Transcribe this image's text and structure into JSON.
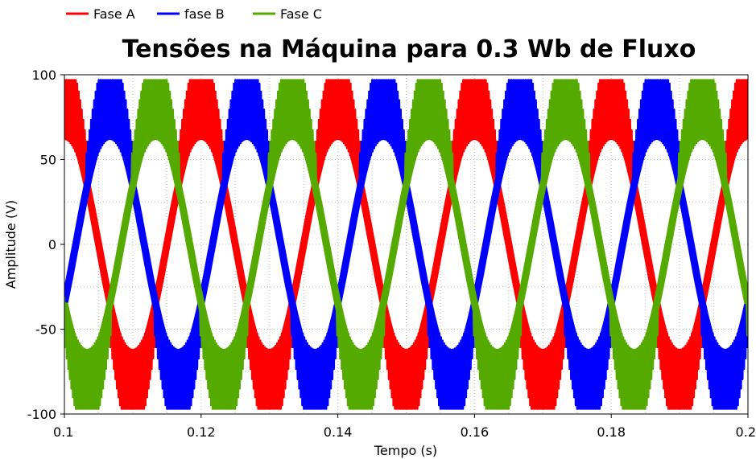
{
  "chart_data": {
    "type": "line",
    "title": "Tensões na Máquina para 0.3 Wb de Fluxo",
    "xlabel": "Tempo (s)",
    "ylabel": "Amplitude (V)",
    "xlim": [
      0.1,
      0.2
    ],
    "ylim": [
      -100,
      100
    ],
    "xticks": [
      "0.1",
      "0.12",
      "0.14",
      "0.16",
      "0.18",
      "0.2"
    ],
    "yticks": [
      "100",
      "50",
      "0",
      "-50",
      "-100"
    ],
    "grid": true,
    "legend_position": "top-left",
    "frequency_hz": 50,
    "series": [
      {
        "name": "Fase A",
        "color": "#ff0000",
        "peak": 97,
        "phase_deg": 90,
        "core_amplitude": 62
      },
      {
        "name": "fase B",
        "color": "#0000ff",
        "peak": 97,
        "phase_deg": -30,
        "core_amplitude": 62
      },
      {
        "name": "Fase C",
        "color": "#55aa00",
        "peak": 97,
        "phase_deg": 210,
        "core_amplitude": 62
      }
    ]
  }
}
